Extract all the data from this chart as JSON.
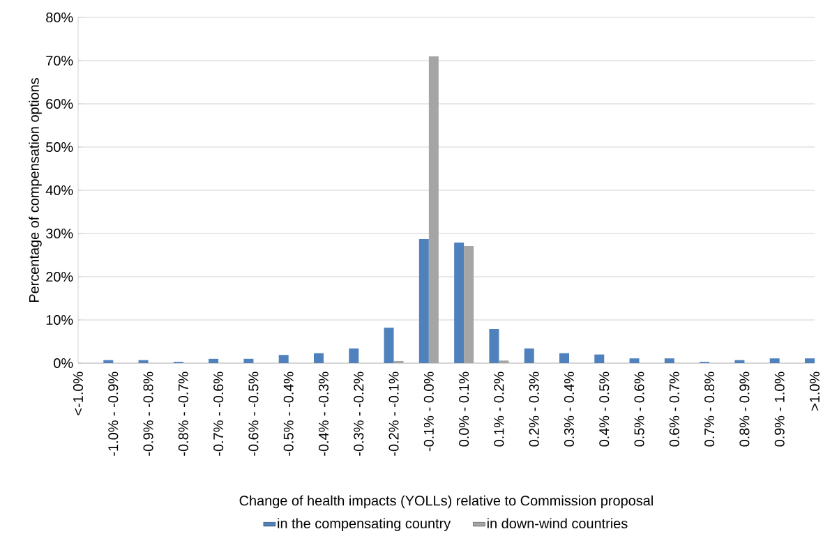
{
  "chart_data": {
    "type": "bar",
    "xlabel": "Change of health impacts (YOLLs) relative to Commission proposal",
    "ylabel": "Percentage of compensation options",
    "categories": [
      "<-1.0%",
      "-1.0% - -0.9%",
      "-0.9% - -0.8%",
      "-0.8% - -0.7%",
      "-0.7% - -0.6%",
      "-0.6% - -0.5%",
      "-0.5% - -0.4%",
      "-0.4% - -0.3%",
      "-0.3% - -0.2%",
      "-0.2% - -0.1%",
      "-0.1% - 0.0%",
      "0.0% - 0.1%",
      "0.1% - 0.2%",
      "0.2% - 0.3%",
      "0.3% - 0.4%",
      "0.4% - 0.5%",
      "0.5% - 0.6%",
      "0.6% - 0.7%",
      "0.7% - 0.8%",
      "0.8% - 0.9%",
      "0.9% - 1.0%",
      ">1.0%"
    ],
    "series": [
      {
        "name": "in the compensating country",
        "color": "#4f81bd",
        "values": [
          null,
          0.7,
          0.7,
          0.3,
          1.0,
          1.0,
          1.9,
          2.3,
          3.4,
          8.2,
          28.7,
          27.9,
          7.9,
          3.4,
          2.3,
          2.0,
          1.1,
          1.1,
          0.3,
          0.7,
          1.1,
          1.1
        ]
      },
      {
        "name": "in down-wind countries",
        "color": "#a5a5a5",
        "values": [
          0,
          0,
          0,
          0,
          0,
          0,
          0,
          0,
          0,
          0.5,
          71.0,
          27.1,
          0.6,
          0,
          0,
          0,
          0,
          0,
          0,
          0,
          0,
          null
        ]
      }
    ],
    "ylim": [
      0,
      80
    ],
    "yticks": [
      {
        "value": 0,
        "label": "0%"
      },
      {
        "value": 10,
        "label": "10%"
      },
      {
        "value": 20,
        "label": "20%"
      },
      {
        "value": 30,
        "label": "30%"
      },
      {
        "value": 40,
        "label": "40%"
      },
      {
        "value": 50,
        "label": "50%"
      },
      {
        "value": 60,
        "label": "60%"
      },
      {
        "value": 70,
        "label": "70%"
      },
      {
        "value": 80,
        "label": "80%"
      }
    ],
    "grid": "y",
    "legend": "bottom"
  }
}
